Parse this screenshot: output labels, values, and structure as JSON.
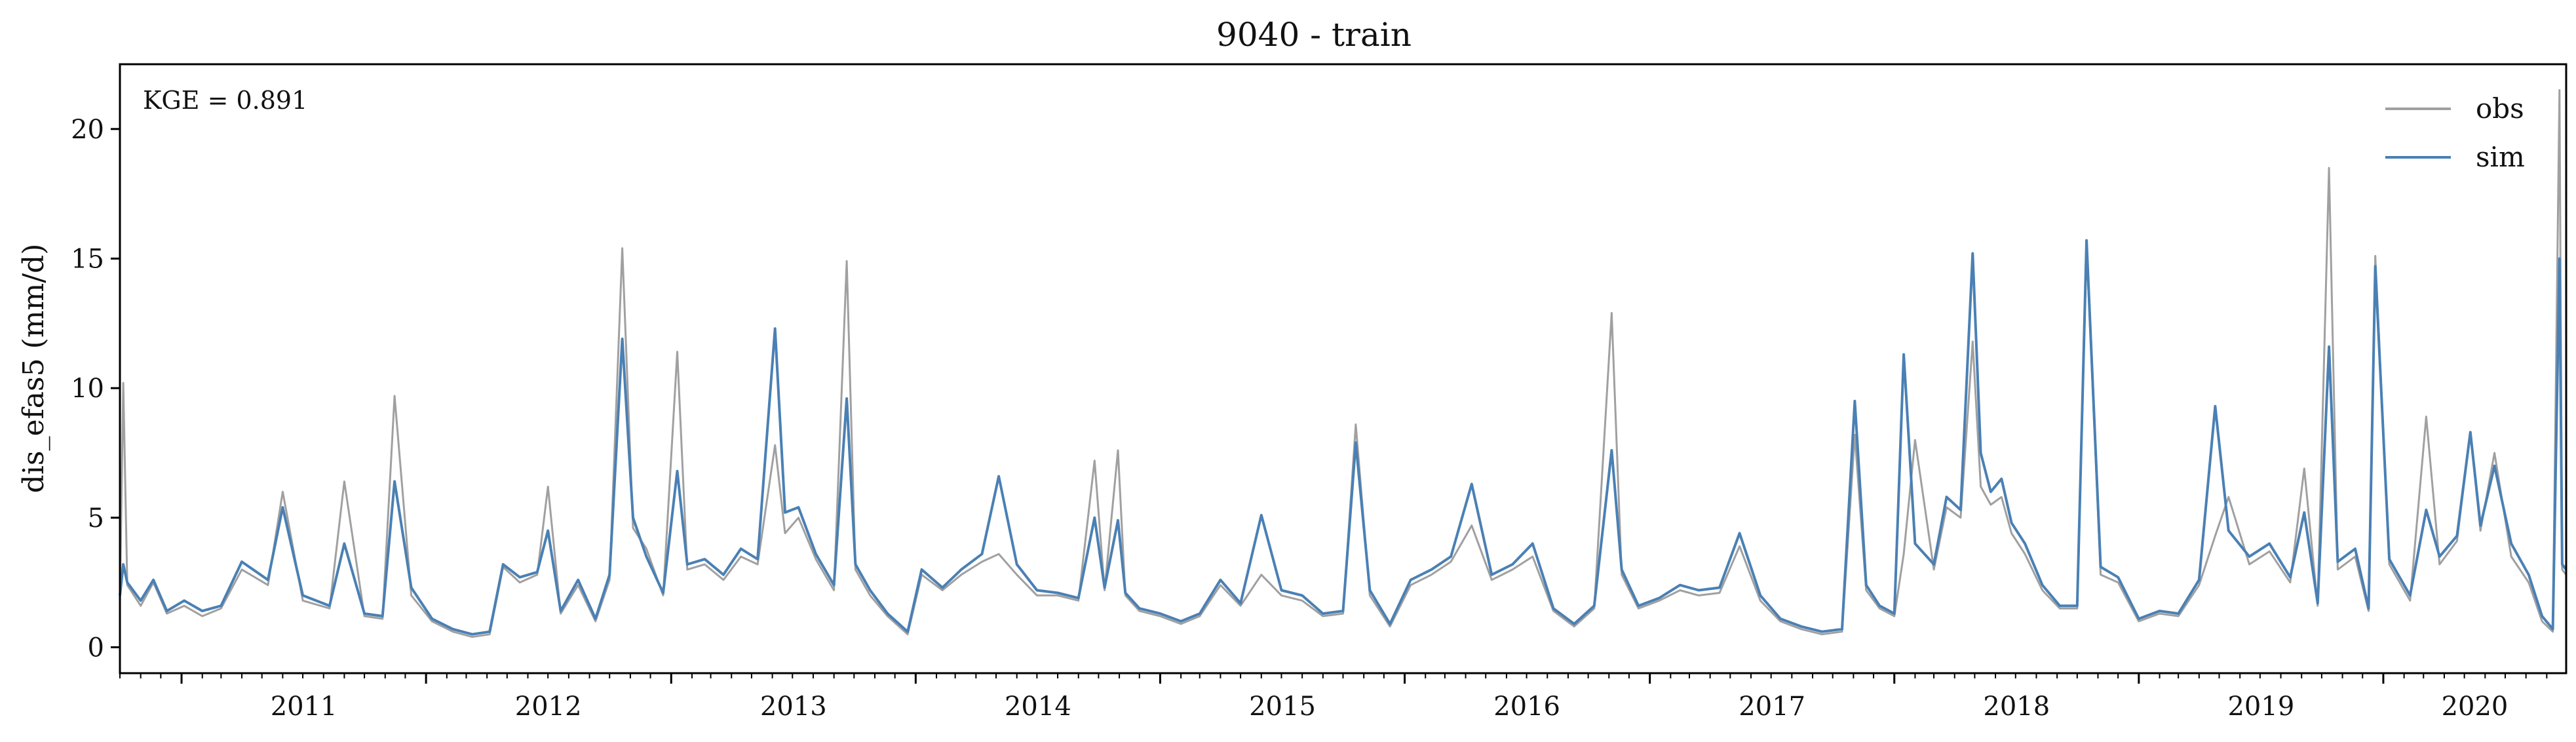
{
  "chart_data": {
    "type": "line",
    "title": "9040 - train",
    "xlabel": "",
    "ylabel": "dis_efas5 (mm/d)",
    "xlim": [
      "2010-10-01",
      "2020-09-30"
    ],
    "ylim": [
      -1,
      22.5
    ],
    "y_ticks": [
      0,
      5,
      10,
      15,
      20
    ],
    "x_ticks": [
      "2011",
      "2012",
      "2013",
      "2014",
      "2015",
      "2016",
      "2017",
      "2018",
      "2019",
      "2020"
    ],
    "x_tick_dates": [
      "2011-01-01",
      "2012-01-01",
      "2013-01-01",
      "2014-01-01",
      "2015-01-01",
      "2016-01-01",
      "2017-01-01",
      "2018-01-01",
      "2019-01-01",
      "2020-01-01"
    ],
    "grid": false,
    "legend": "top-right",
    "annotation": "KGE = 0.891",
    "series": [
      {
        "name": "obs",
        "color": "#a0a0a0",
        "x": [
          "2010-10-01",
          "2010-10-06",
          "2010-10-12",
          "2010-11-01",
          "2010-11-20",
          "2010-12-10",
          "2011-01-05",
          "2011-02-01",
          "2011-03-01",
          "2011-04-01",
          "2011-05-10",
          "2011-06-01",
          "2011-07-01",
          "2011-08-10",
          "2011-09-01",
          "2011-10-01",
          "2011-10-28",
          "2011-11-15",
          "2011-12-10",
          "2012-01-10",
          "2012-02-10",
          "2012-03-10",
          "2012-04-05",
          "2012-04-25",
          "2012-05-20",
          "2012-06-15",
          "2012-07-01",
          "2012-07-20",
          "2012-08-15",
          "2012-09-10",
          "2012-10-01",
          "2012-10-20",
          "2012-11-05",
          "2012-11-25",
          "2012-12-20",
          "2013-01-10",
          "2013-01-25",
          "2013-02-20",
          "2013-03-20",
          "2013-04-15",
          "2013-05-10",
          "2013-06-05",
          "2013-06-20",
          "2013-07-10",
          "2013-08-05",
          "2013-09-01",
          "2013-09-20",
          "2013-10-03",
          "2013-10-25",
          "2013-11-20",
          "2013-12-20",
          "2014-01-10",
          "2014-02-10",
          "2014-03-10",
          "2014-04-10",
          "2014-05-05",
          "2014-06-01",
          "2014-07-01",
          "2014-08-01",
          "2014-09-01",
          "2014-09-25",
          "2014-10-10",
          "2014-10-30",
          "2014-11-10",
          "2014-12-01",
          "2015-01-01",
          "2015-02-01",
          "2015-03-01",
          "2015-04-01",
          "2015-05-01",
          "2015-06-01",
          "2015-07-01",
          "2015-08-01",
          "2015-09-01",
          "2015-10-01",
          "2015-10-20",
          "2015-11-10",
          "2015-12-10",
          "2016-01-10",
          "2016-02-10",
          "2016-03-10",
          "2016-04-10",
          "2016-05-10",
          "2016-06-10",
          "2016-07-10",
          "2016-08-10",
          "2016-09-10",
          "2016-10-10",
          "2016-11-05",
          "2016-11-20",
          "2016-12-15",
          "2017-01-15",
          "2017-02-15",
          "2017-03-15",
          "2017-04-15",
          "2017-05-15",
          "2017-06-15",
          "2017-07-15",
          "2017-08-15",
          "2017-09-15",
          "2017-10-15",
          "2017-11-03",
          "2017-11-20",
          "2017-12-10",
          "2018-01-01",
          "2018-01-15",
          "2018-02-01",
          "2018-03-01",
          "2018-03-20",
          "2018-04-10",
          "2018-04-28",
          "2018-05-10",
          "2018-05-25",
          "2018-06-10",
          "2018-06-25",
          "2018-07-15",
          "2018-08-10",
          "2018-09-05",
          "2018-10-01",
          "2018-10-15",
          "2018-11-05",
          "2018-12-01",
          "2019-01-01",
          "2019-02-01",
          "2019-03-01",
          "2019-04-01",
          "2019-04-25",
          "2019-05-15",
          "2019-06-15",
          "2019-07-15",
          "2019-08-15",
          "2019-09-05",
          "2019-09-25",
          "2019-10-12",
          "2019-10-25",
          "2019-11-20",
          "2019-12-10",
          "2019-12-20",
          "2020-01-10",
          "2020-02-10",
          "2020-03-05",
          "2020-03-25",
          "2020-04-20",
          "2020-05-10",
          "2020-05-25",
          "2020-06-15",
          "2020-07-10",
          "2020-08-05",
          "2020-08-25",
          "2020-09-10",
          "2020-09-20",
          "2020-09-24",
          "2020-09-30"
        ],
        "y": [
          1.8,
          10.2,
          2.4,
          1.6,
          2.5,
          1.3,
          1.6,
          1.2,
          1.5,
          3.0,
          2.4,
          6.0,
          1.8,
          1.5,
          6.4,
          1.2,
          1.1,
          9.7,
          2.0,
          1.0,
          0.6,
          0.4,
          0.5,
          3.1,
          2.5,
          2.8,
          6.2,
          1.3,
          2.4,
          1.0,
          2.6,
          15.4,
          4.6,
          3.8,
          2.0,
          11.4,
          3.0,
          3.2,
          2.6,
          3.5,
          3.2,
          7.8,
          4.4,
          5.0,
          3.4,
          2.2,
          14.9,
          3.0,
          2.0,
          1.2,
          0.5,
          2.8,
          2.2,
          2.8,
          3.3,
          3.6,
          2.8,
          2.0,
          2.0,
          1.8,
          7.2,
          2.2,
          7.6,
          2.0,
          1.4,
          1.2,
          0.9,
          1.2,
          2.4,
          1.6,
          2.8,
          2.0,
          1.8,
          1.2,
          1.3,
          8.6,
          2.0,
          0.8,
          2.4,
          2.8,
          3.3,
          4.7,
          2.6,
          3.0,
          3.5,
          1.4,
          0.8,
          1.5,
          12.9,
          2.8,
          1.5,
          1.8,
          2.2,
          2.0,
          2.1,
          3.9,
          1.8,
          1.0,
          0.7,
          0.5,
          0.6,
          8.2,
          2.2,
          1.5,
          1.2,
          3.6,
          8.0,
          3.0,
          5.4,
          5.0,
          11.8,
          6.2,
          5.5,
          5.8,
          4.4,
          3.6,
          2.2,
          1.5,
          1.5,
          15.5,
          2.8,
          2.5,
          1.0,
          1.3,
          1.2,
          2.4,
          4.3,
          5.8,
          3.2,
          3.7,
          2.5,
          6.9,
          1.6,
          18.5,
          3.0,
          3.5,
          1.4,
          15.1,
          3.2,
          1.8,
          8.9,
          3.2,
          4.1,
          8.3,
          4.5,
          7.5,
          3.5,
          2.5,
          1.0,
          0.6,
          21.5,
          3.0,
          2.8
        ]
      },
      {
        "name": "sim",
        "color": "#4a80b4",
        "x": [
          "2010-10-01",
          "2010-10-06",
          "2010-10-12",
          "2010-11-01",
          "2010-11-20",
          "2010-12-10",
          "2011-01-05",
          "2011-02-01",
          "2011-03-01",
          "2011-04-01",
          "2011-05-10",
          "2011-06-01",
          "2011-07-01",
          "2011-08-10",
          "2011-09-01",
          "2011-10-01",
          "2011-10-28",
          "2011-11-15",
          "2011-12-10",
          "2012-01-10",
          "2012-02-10",
          "2012-03-10",
          "2012-04-05",
          "2012-04-25",
          "2012-05-20",
          "2012-06-15",
          "2012-07-01",
          "2012-07-20",
          "2012-08-15",
          "2012-09-10",
          "2012-10-01",
          "2012-10-20",
          "2012-11-05",
          "2012-11-25",
          "2012-12-20",
          "2013-01-10",
          "2013-01-25",
          "2013-02-20",
          "2013-03-20",
          "2013-04-15",
          "2013-05-10",
          "2013-06-05",
          "2013-06-20",
          "2013-07-10",
          "2013-08-05",
          "2013-09-01",
          "2013-09-20",
          "2013-10-03",
          "2013-10-25",
          "2013-11-20",
          "2013-12-20",
          "2014-01-10",
          "2014-02-10",
          "2014-03-10",
          "2014-04-10",
          "2014-05-05",
          "2014-06-01",
          "2014-07-01",
          "2014-08-01",
          "2014-09-01",
          "2014-09-25",
          "2014-10-10",
          "2014-10-30",
          "2014-11-10",
          "2014-12-01",
          "2015-01-01",
          "2015-02-01",
          "2015-03-01",
          "2015-04-01",
          "2015-05-01",
          "2015-06-01",
          "2015-07-01",
          "2015-08-01",
          "2015-09-01",
          "2015-10-01",
          "2015-10-20",
          "2015-11-10",
          "2015-12-10",
          "2016-01-10",
          "2016-02-10",
          "2016-03-10",
          "2016-04-10",
          "2016-05-10",
          "2016-06-10",
          "2016-07-10",
          "2016-08-10",
          "2016-09-10",
          "2016-10-10",
          "2016-11-05",
          "2016-11-20",
          "2016-12-15",
          "2017-01-15",
          "2017-02-15",
          "2017-03-15",
          "2017-04-15",
          "2017-05-15",
          "2017-06-15",
          "2017-07-15",
          "2017-08-15",
          "2017-09-15",
          "2017-10-15",
          "2017-11-03",
          "2017-11-20",
          "2017-12-10",
          "2018-01-01",
          "2018-01-15",
          "2018-02-01",
          "2018-03-01",
          "2018-03-20",
          "2018-04-10",
          "2018-04-28",
          "2018-05-10",
          "2018-05-25",
          "2018-06-10",
          "2018-06-25",
          "2018-07-15",
          "2018-08-10",
          "2018-09-05",
          "2018-10-01",
          "2018-10-15",
          "2018-11-05",
          "2018-12-01",
          "2019-01-01",
          "2019-02-01",
          "2019-03-01",
          "2019-04-01",
          "2019-04-25",
          "2019-05-15",
          "2019-06-15",
          "2019-07-15",
          "2019-08-15",
          "2019-09-05",
          "2019-09-25",
          "2019-10-12",
          "2019-10-25",
          "2019-11-20",
          "2019-12-10",
          "2019-12-20",
          "2020-01-10",
          "2020-02-10",
          "2020-03-05",
          "2020-03-25",
          "2020-04-20",
          "2020-05-10",
          "2020-05-25",
          "2020-06-15",
          "2020-07-10",
          "2020-08-05",
          "2020-08-25",
          "2020-09-10",
          "2020-09-20",
          "2020-09-24",
          "2020-09-30"
        ],
        "y": [
          2.0,
          3.2,
          2.5,
          1.8,
          2.6,
          1.4,
          1.8,
          1.4,
          1.6,
          3.3,
          2.6,
          5.4,
          2.0,
          1.6,
          4.0,
          1.3,
          1.2,
          6.4,
          2.3,
          1.1,
          0.7,
          0.5,
          0.6,
          3.2,
          2.7,
          2.9,
          4.5,
          1.4,
          2.6,
          1.1,
          2.8,
          11.9,
          5.0,
          3.5,
          2.1,
          6.8,
          3.2,
          3.4,
          2.8,
          3.8,
          3.4,
          12.3,
          5.2,
          5.4,
          3.6,
          2.4,
          9.6,
          3.2,
          2.2,
          1.3,
          0.6,
          3.0,
          2.3,
          3.0,
          3.6,
          6.6,
          3.2,
          2.2,
          2.1,
          1.9,
          5.0,
          2.3,
          4.9,
          2.1,
          1.5,
          1.3,
          1.0,
          1.3,
          2.6,
          1.7,
          5.1,
          2.2,
          2.0,
          1.3,
          1.4,
          7.9,
          2.2,
          0.9,
          2.6,
          3.0,
          3.5,
          6.3,
          2.8,
          3.2,
          4.0,
          1.5,
          0.9,
          1.6,
          7.6,
          3.0,
          1.6,
          1.9,
          2.4,
          2.2,
          2.3,
          4.4,
          2.0,
          1.1,
          0.8,
          0.6,
          0.7,
          9.5,
          2.4,
          1.6,
          1.3,
          11.3,
          4.0,
          3.2,
          5.8,
          5.3,
          15.2,
          7.5,
          6.0,
          6.5,
          4.8,
          4.0,
          2.4,
          1.6,
          1.6,
          15.7,
          3.1,
          2.7,
          1.1,
          1.4,
          1.3,
          2.6,
          9.3,
          4.5,
          3.5,
          4.0,
          2.7,
          5.2,
          1.7,
          11.6,
          3.3,
          3.8,
          1.5,
          14.7,
          3.4,
          2.0,
          5.3,
          3.5,
          4.3,
          8.3,
          4.7,
          7.0,
          4.0,
          2.8,
          1.2,
          0.7,
          15.0,
          3.2,
          3.0
        ]
      }
    ]
  }
}
